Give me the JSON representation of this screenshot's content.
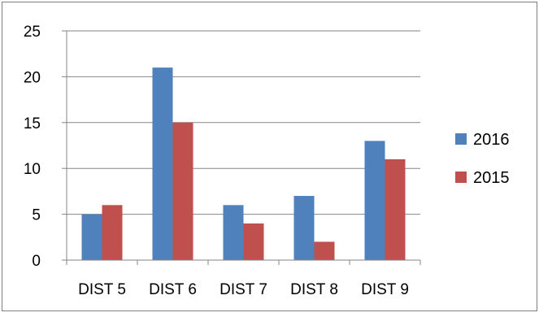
{
  "chart_data": {
    "type": "bar",
    "title": "",
    "xlabel": "",
    "ylabel": "",
    "categories": [
      "DIST 5",
      "DIST 6",
      "DIST 7",
      "DIST 8",
      "DIST 9"
    ],
    "series": [
      {
        "name": "2016",
        "color": "#4F81BD",
        "values": [
          5,
          21,
          6,
          7,
          13
        ]
      },
      {
        "name": "2015",
        "color": "#C0504D",
        "values": [
          6,
          15,
          4,
          2,
          11
        ]
      }
    ],
    "ylim": [
      0,
      25
    ],
    "yticks": [
      "0",
      "5",
      "10",
      "15",
      "20",
      "25"
    ],
    "grid": true,
    "legend_position": "right"
  }
}
